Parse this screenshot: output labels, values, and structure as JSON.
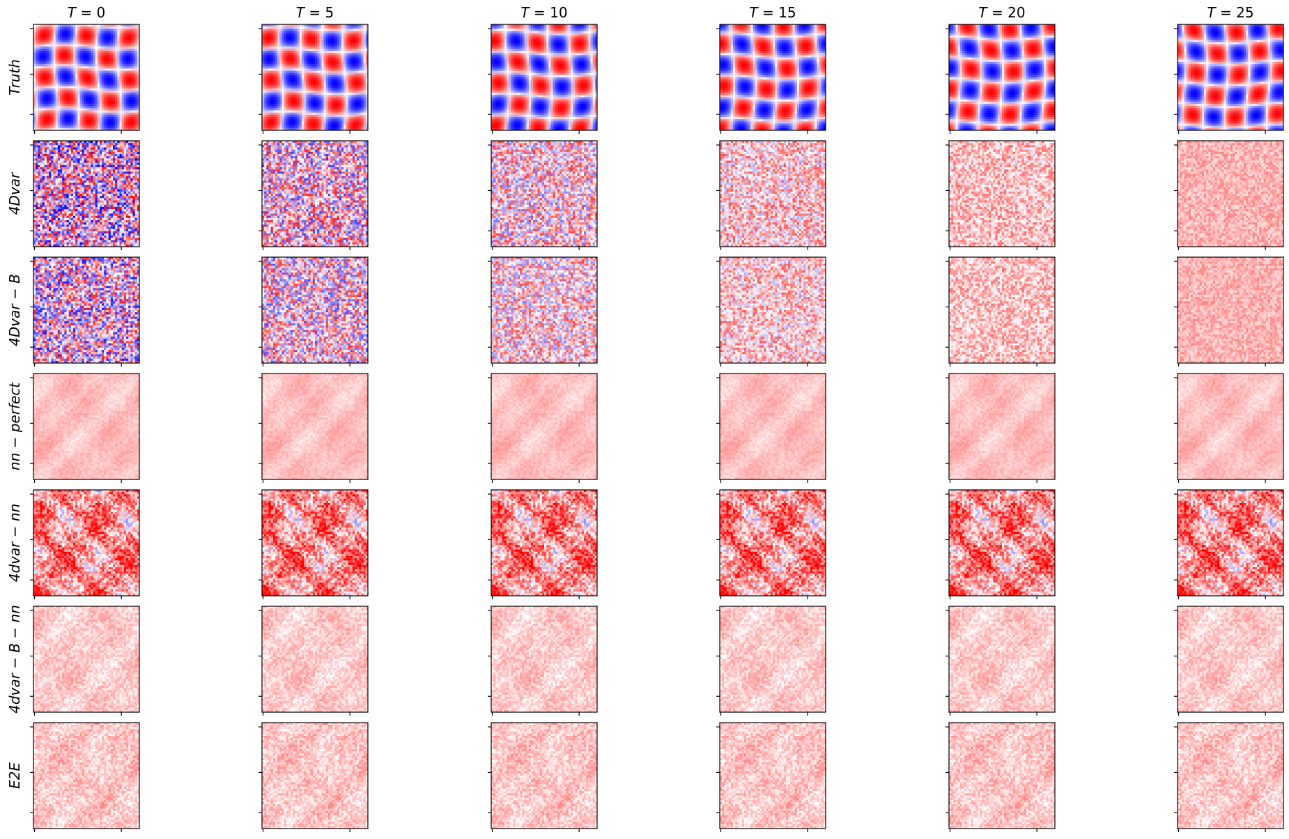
{
  "chart_data": {
    "type": "heatmap",
    "columns": [
      {
        "label": "T = 0",
        "var": "T",
        "value": "0"
      },
      {
        "label": "T = 5",
        "var": "T",
        "value": "5"
      },
      {
        "label": "T = 10",
        "var": "T",
        "value": "10"
      },
      {
        "label": "T = 15",
        "var": "T",
        "value": "15"
      },
      {
        "label": "T = 20",
        "var": "T",
        "value": "20"
      },
      {
        "label": "T = 25",
        "var": "T",
        "value": "25"
      }
    ],
    "rows": [
      {
        "label": "Truth",
        "pattern": "lattice",
        "noise": 0.0,
        "bias": 0.0
      },
      {
        "label": "4Dvar",
        "pattern": "noise",
        "noise": 1.0,
        "bias": 0.0
      },
      {
        "label": "4Dvar − B",
        "pattern": "noise",
        "noise": 0.9,
        "bias": 0.0
      },
      {
        "label": "nn − perfect",
        "pattern": "smooth",
        "noise": 0.15,
        "bias": 0.25
      },
      {
        "label": "4dvar − nn",
        "pattern": "patchy",
        "noise": 0.7,
        "bias": 0.45
      },
      {
        "label": "4dvar − B − nn",
        "pattern": "smooth",
        "noise": 0.3,
        "bias": 0.2
      },
      {
        "label": "E2E",
        "pattern": "smooth",
        "noise": 0.35,
        "bias": 0.22
      }
    ],
    "colormap": [
      "#0000ff",
      "#ffffff",
      "#ff0000"
    ],
    "axis_ticks": false,
    "grid": false,
    "legend": "none"
  }
}
